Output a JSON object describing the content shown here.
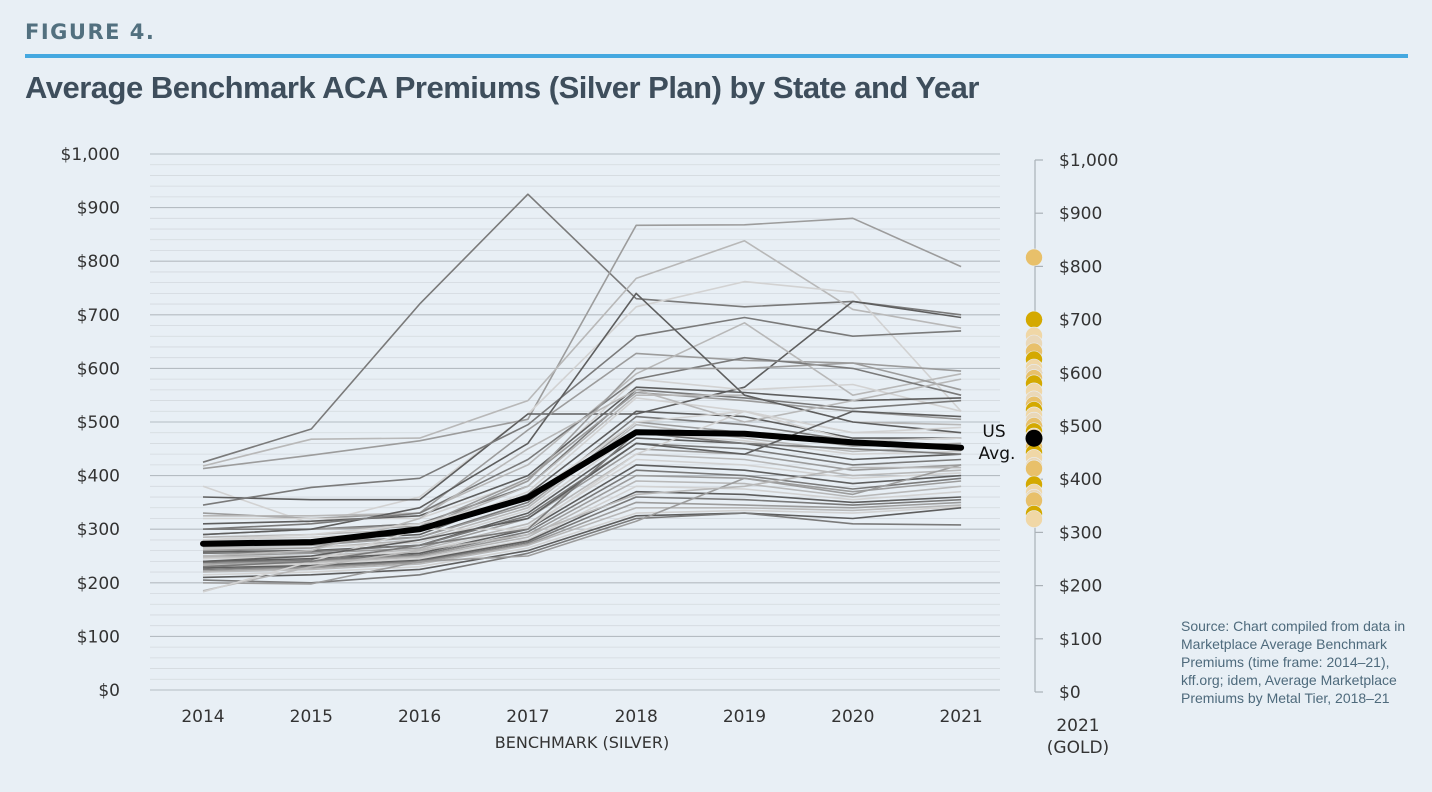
{
  "figure_label": "FIGURE 4.",
  "title": "Average Benchmark ACA Premiums (Silver Plan) by State and Year",
  "source": "Source: Chart compiled from data in Marketplace Average Benchmark Premiums (time frame: 2014–21), kff.org; idem, Average Marketplace Premiums by Metal Tier, 2018–21",
  "colors": {
    "accent_rule": "#44a8e0",
    "average_line": "#000000",
    "state_lines": [
      "#7a7a7a",
      "#9c9c9c",
      "#b8b8b8",
      "#d2d2d2",
      "#5e5e5e"
    ],
    "gold_points": [
      "#e8c06a",
      "#d4a900",
      "#f0d7a6",
      "#ead8b8"
    ]
  },
  "chart_data": {
    "type": "line",
    "title": "Average Benchmark ACA Premiums (Silver Plan) by State and Year",
    "xlabel": "BENCHMARK (SILVER)",
    "categories": [
      "2014",
      "2015",
      "2016",
      "2017",
      "2018",
      "2019",
      "2020",
      "2021"
    ],
    "ylim": [
      0,
      1000
    ],
    "yticks": [
      "$0",
      "$100",
      "$200",
      "$300",
      "$400",
      "$500",
      "$600",
      "$700",
      "$800",
      "$900",
      "$1,000"
    ],
    "grid": true,
    "average": {
      "name": "US Avg.",
      "values": [
        273,
        276,
        300,
        359,
        481,
        478,
        462,
        452
      ]
    },
    "series": [
      {
        "values": [
          425,
          487,
          720,
          925,
          730,
          715,
          725,
          700
        ]
      },
      {
        "values": [
          413,
          438,
          465,
          505,
          867,
          868,
          880,
          790
        ]
      },
      {
        "values": [
          418,
          468,
          470,
          540,
          768,
          838,
          710,
          675
        ]
      },
      {
        "values": [
          380,
          310,
          360,
          515,
          715,
          762,
          742,
          520
        ]
      },
      {
        "values": [
          360,
          355,
          355,
          515,
          515,
          565,
          725,
          695
        ]
      },
      {
        "values": [
          345,
          378,
          395,
          495,
          660,
          695,
          660,
          670
        ]
      },
      {
        "values": [
          330,
          320,
          330,
          485,
          628,
          615,
          610,
          595
        ]
      },
      {
        "values": [
          325,
          325,
          330,
          420,
          590,
          685,
          550,
          590
        ]
      },
      {
        "values": [
          320,
          320,
          320,
          390,
          580,
          560,
          570,
          520
        ]
      },
      {
        "values": [
          310,
          315,
          325,
          400,
          565,
          555,
          540,
          545
        ]
      },
      {
        "values": [
          300,
          300,
          310,
          380,
          560,
          545,
          525,
          540
        ]
      },
      {
        "values": [
          290,
          300,
          305,
          395,
          555,
          540,
          520,
          505
        ]
      },
      {
        "values": [
          285,
          290,
          300,
          380,
          550,
          550,
          500,
          495
        ]
      },
      {
        "values": [
          280,
          285,
          295,
          370,
          545,
          520,
          480,
          480
        ]
      },
      {
        "values": [
          275,
          280,
          290,
          365,
          520,
          510,
          470,
          470
        ]
      },
      {
        "values": [
          270,
          275,
          285,
          350,
          510,
          495,
          465,
          470
        ]
      },
      {
        "values": [
          268,
          270,
          285,
          345,
          500,
          480,
          455,
          460
        ]
      },
      {
        "values": [
          265,
          265,
          280,
          340,
          495,
          470,
          445,
          455
        ]
      },
      {
        "values": [
          262,
          265,
          275,
          335,
          480,
          465,
          440,
          445
        ]
      },
      {
        "values": [
          258,
          260,
          270,
          330,
          470,
          460,
          430,
          440
        ]
      },
      {
        "values": [
          255,
          258,
          270,
          325,
          460,
          450,
          420,
          430
        ]
      },
      {
        "values": [
          250,
          255,
          265,
          320,
          450,
          440,
          410,
          420
        ]
      },
      {
        "values": [
          248,
          250,
          262,
          310,
          440,
          430,
          400,
          410
        ]
      },
      {
        "values": [
          245,
          248,
          258,
          305,
          430,
          420,
          395,
          405
        ]
      },
      {
        "values": [
          240,
          245,
          255,
          300,
          420,
          410,
          385,
          400
        ]
      },
      {
        "values": [
          238,
          242,
          252,
          295,
          410,
          400,
          375,
          395
        ]
      },
      {
        "values": [
          235,
          240,
          250,
          290,
          400,
          395,
          370,
          390
        ]
      },
      {
        "values": [
          232,
          238,
          248,
          285,
          390,
          385,
          360,
          380
        ]
      },
      {
        "values": [
          230,
          235,
          245,
          280,
          380,
          375,
          355,
          370
        ]
      },
      {
        "values": [
          228,
          232,
          242,
          278,
          370,
          365,
          350,
          360
        ]
      },
      {
        "values": [
          225,
          230,
          240,
          275,
          360,
          355,
          345,
          355
        ]
      },
      {
        "values": [
          222,
          228,
          238,
          272,
          350,
          345,
          340,
          350
        ]
      },
      {
        "values": [
          220,
          225,
          235,
          270,
          340,
          340,
          335,
          345
        ]
      },
      {
        "values": [
          215,
          220,
          230,
          265,
          330,
          335,
          330,
          342
        ]
      },
      {
        "values": [
          210,
          215,
          225,
          260,
          325,
          330,
          320,
          340
        ]
      },
      {
        "values": [
          205,
          200,
          215,
          255,
          320,
          330,
          310,
          308
        ]
      },
      {
        "values": [
          200,
          198,
          240,
          250,
          315,
          395,
          365,
          420
        ]
      },
      {
        "values": [
          185,
          230,
          260,
          290,
          365,
          380,
          415,
          415
        ]
      },
      {
        "values": [
          183,
          240,
          300,
          300,
          440,
          520,
          465,
          470
        ]
      },
      {
        "values": [
          290,
          300,
          340,
          460,
          740,
          550,
          500,
          480
        ]
      },
      {
        "values": [
          300,
          310,
          330,
          430,
          580,
          620,
          600,
          550
        ]
      },
      {
        "values": [
          260,
          265,
          300,
          390,
          600,
          600,
          610,
          560
        ]
      },
      {
        "values": [
          250,
          260,
          320,
          450,
          560,
          500,
          540,
          580
        ]
      },
      {
        "values": [
          280,
          290,
          310,
          360,
          500,
          520,
          480,
          490
        ]
      },
      {
        "values": [
          240,
          250,
          280,
          320,
          460,
          440,
          520,
          510
        ]
      },
      {
        "values": [
          230,
          240,
          270,
          300,
          480,
          460,
          450,
          440
        ]
      }
    ],
    "gold_2021": {
      "label": "2021 (GOLD)",
      "yticks": [
        "$0",
        "$100",
        "$200",
        "$300",
        "$400",
        "$500",
        "$600",
        "$700",
        "$800",
        "$900",
        "$1,000"
      ],
      "values": [
        817,
        700,
        670,
        655,
        640,
        625,
        610,
        600,
        590,
        580,
        565,
        550,
        540,
        530,
        520,
        510,
        500,
        490,
        480,
        470,
        460,
        450,
        440,
        425,
        420,
        390,
        375,
        365,
        360,
        335,
        325
      ]
    }
  }
}
